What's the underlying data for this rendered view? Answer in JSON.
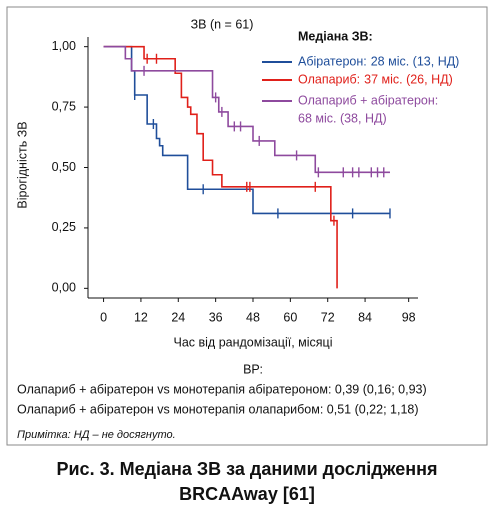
{
  "chart_data": {
    "type": "line",
    "step": true,
    "title": "ЗВ (n = 61)",
    "ylabel": "Вірогідність ЗВ",
    "xlabel": "Час від рандомізації, місяці",
    "legend_title": "Медіана ЗВ:",
    "xlim": [
      -5,
      101
    ],
    "xticks": [
      0,
      12,
      24,
      36,
      48,
      60,
      72,
      84,
      98
    ],
    "ylim": [
      -0.04,
      1.04
    ],
    "yticks": [
      {
        "value": 0,
        "label": "0,00"
      },
      {
        "value": 0.25,
        "label": "0,25"
      },
      {
        "value": 0.5,
        "label": "0,50"
      },
      {
        "value": 0.75,
        "label": "0,75"
      },
      {
        "value": 1,
        "label": "1,00"
      }
    ],
    "series": [
      {
        "name": "Абіратерон:",
        "median": "28 міс. (13, НД)",
        "color": "#1f4e9a",
        "x": [
          0,
          9,
          10,
          14,
          17,
          18,
          19,
          27,
          48,
          92
        ],
        "values": [
          1,
          0.9,
          0.8,
          0.68,
          0.62,
          0.59,
          0.55,
          0.41,
          0.31,
          0.31
        ],
        "censored_x": [
          10,
          16,
          32,
          56,
          80,
          92
        ]
      },
      {
        "name": "Олапариб:",
        "median": "37 міс. (26, НД)",
        "color": "#e0201a",
        "x": [
          0,
          13,
          23,
          25,
          27,
          28,
          30,
          32,
          35,
          38,
          73,
          75
        ],
        "values": [
          1,
          0.95,
          0.89,
          0.79,
          0.75,
          0.72,
          0.64,
          0.53,
          0.47,
          0.42,
          0.28,
          0
        ],
        "censored_x": [
          14,
          17,
          46,
          47,
          68,
          74
        ]
      },
      {
        "name": "Олапариб + абіратерон:",
        "median": "68 міс. (38, НД)",
        "color": "#8e4a9e",
        "x": [
          0,
          7,
          9,
          35,
          37,
          40,
          48,
          55,
          68,
          92
        ],
        "values": [
          1,
          0.95,
          0.9,
          0.79,
          0.73,
          0.67,
          0.61,
          0.55,
          0.48,
          0.48
        ],
        "censored_x": [
          13,
          36,
          38,
          42,
          44,
          50,
          62,
          69,
          77,
          80,
          82,
          86,
          88,
          90
        ]
      }
    ]
  },
  "notes": {
    "title": "ВР:",
    "lines": [
      "Олапариб + абіратерон vs монотерапія абіратероном: 0,39 (0,16; 0,93)",
      "Олапариб + абіратерон vs монотерапія олапарибом: 0,51 (0,22; 1,18)"
    ],
    "footnote": "Примітка: НД – не досягнуто."
  },
  "caption": [
    "Рис. 3. Медіана ЗВ за даними дослідження",
    "BRCAAway [61]"
  ]
}
